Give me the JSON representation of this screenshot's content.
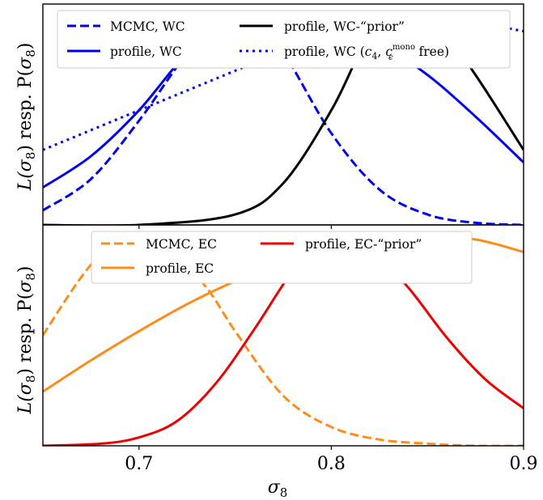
{
  "chart_data": [
    {
      "type": "line",
      "xlabel": "",
      "ylabel": "L(σ8) resp. P(σ8)",
      "xlim": [
        0.65,
        0.9
      ],
      "ylim": [
        0,
        1.06
      ],
      "xticks": [],
      "grid": false,
      "legend_position": "top",
      "series": [
        {
          "name": "MCMC, WC",
          "color": "#0000ee",
          "style": "dashed",
          "x": [
            0.65,
            0.675,
            0.7,
            0.725,
            0.745,
            0.75,
            0.76,
            0.775,
            0.8,
            0.825,
            0.85,
            0.875,
            0.9
          ],
          "y": [
            0.07,
            0.22,
            0.5,
            0.82,
            0.97,
            0.99,
            0.98,
            0.83,
            0.44,
            0.17,
            0.05,
            0.01,
            0.0
          ]
        },
        {
          "name": "profile, WC",
          "color": "#0000ee",
          "style": "solid",
          "x": [
            0.65,
            0.675,
            0.7,
            0.725,
            0.75,
            0.77,
            0.8,
            0.825,
            0.85,
            0.875,
            0.9
          ],
          "y": [
            0.18,
            0.33,
            0.55,
            0.82,
            0.97,
            1.0,
            0.96,
            0.87,
            0.72,
            0.52,
            0.3
          ]
        },
        {
          "name": "profile, WC-“prior”",
          "color": "#000000",
          "style": "solid",
          "x": [
            0.65,
            0.7,
            0.75,
            0.775,
            0.8,
            0.815,
            0.825,
            0.84,
            0.86,
            0.875,
            0.9
          ],
          "y": [
            0.0,
            0.0,
            0.05,
            0.2,
            0.55,
            0.83,
            0.95,
            1.0,
            0.9,
            0.72,
            0.36
          ]
        },
        {
          "name": "profile, WC (c4, cϵmono free)",
          "color": "#0000ee",
          "style": "dotted",
          "x": [
            0.65,
            0.7,
            0.75,
            0.8,
            0.825,
            0.85,
            0.875,
            0.9
          ],
          "y": [
            0.36,
            0.55,
            0.74,
            0.93,
            0.98,
            0.99,
            0.97,
            0.93
          ]
        }
      ]
    },
    {
      "type": "line",
      "xlabel": "σ8",
      "ylabel": "L(σ8) resp. P(σ8)",
      "xlim": [
        0.65,
        0.9
      ],
      "ylim": [
        0,
        1.06
      ],
      "xticks": [
        "0.7",
        "0.8",
        "0.9"
      ],
      "grid": false,
      "legend_position": "top",
      "series": [
        {
          "name": "MCMC, EC",
          "color": "#ff8c1a",
          "style": "dashed",
          "x": [
            0.65,
            0.67,
            0.685,
            0.7,
            0.715,
            0.735,
            0.75,
            0.775,
            0.8,
            0.825,
            0.85,
            0.875,
            0.9
          ],
          "y": [
            0.53,
            0.81,
            0.96,
            1.0,
            0.95,
            0.76,
            0.55,
            0.24,
            0.09,
            0.03,
            0.01,
            0.0,
            0.0
          ]
        },
        {
          "name": "profile, EC",
          "color": "#ff8c1a",
          "style": "solid",
          "x": [
            0.65,
            0.675,
            0.7,
            0.725,
            0.75,
            0.775,
            0.8,
            0.825,
            0.84,
            0.85,
            0.875,
            0.9
          ],
          "y": [
            0.26,
            0.41,
            0.55,
            0.68,
            0.79,
            0.88,
            0.95,
            0.99,
            1.0,
            1.0,
            0.99,
            0.93
          ]
        },
        {
          "name": "profile, EC-“prior”",
          "color": "#ee0000",
          "style": "solid",
          "x": [
            0.65,
            0.68,
            0.7,
            0.72,
            0.74,
            0.76,
            0.78,
            0.795,
            0.805,
            0.82,
            0.84,
            0.86,
            0.88,
            0.9
          ],
          "y": [
            0.0,
            0.01,
            0.04,
            0.12,
            0.3,
            0.56,
            0.84,
            0.97,
            1.0,
            0.95,
            0.76,
            0.52,
            0.32,
            0.18
          ]
        }
      ]
    }
  ],
  "legend_top": {
    "items": [
      {
        "label": "MCMC, WC"
      },
      {
        "label": "profile, WC"
      },
      {
        "label": "profile, WC-“prior”"
      },
      {
        "label_prefix": "profile, WC (",
        "c4_base": "c",
        "c4_sub": "4",
        "sep": ", ",
        "ceps_base": "c",
        "ceps_sup": "mono",
        "ceps_sub": "ϵ",
        "label_suffix": " free)"
      }
    ]
  },
  "legend_bottom": {
    "items": [
      {
        "label": "MCMC, EC"
      },
      {
        "label": "profile, EC"
      },
      {
        "label": "profile, EC-“prior”"
      }
    ]
  },
  "ylabel_parts": {
    "L": "L(",
    "sigma": "σ",
    "eight": "8",
    "mid": ") resp. P(",
    "sigma2": "σ",
    "eight2": "8",
    "end": ")"
  },
  "xlabel_parts": {
    "sigma": "σ",
    "eight": "8"
  }
}
